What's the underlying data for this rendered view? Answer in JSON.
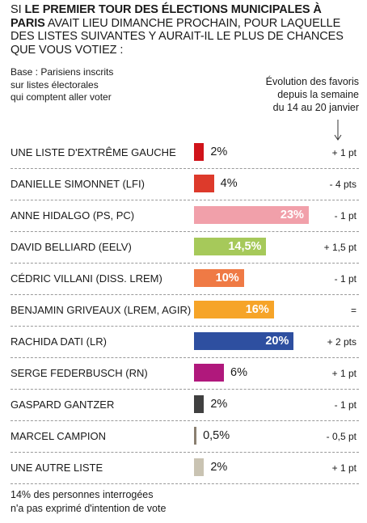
{
  "question": {
    "prefix": "Si ",
    "bold": "le premier tour des élections municipales à Paris",
    "rest": " avait lieu dimanche prochain, pour laquelle des listes suivantes y aurait-il le plus de chances que vous votiez :"
  },
  "base": {
    "lines": [
      "Base : Parisiens inscrits",
      "sur listes électorales",
      "qui comptent aller voter"
    ]
  },
  "evolution_header": {
    "lines": [
      "Évolution des favoris",
      "depuis la semaine",
      "du 14 au 20 janvier"
    ]
  },
  "chart_data": {
    "type": "bar",
    "orientation": "horizontal",
    "unit": "%",
    "categories": [
      "Une liste d'extrême gauche",
      "Danielle Simonnet (LFI)",
      "Anne Hidalgo (PS, PC)",
      "David Belliard (EELV)",
      "Cédric Villani (diss. LREM)",
      "Benjamin Griveaux (LREM, Agir)",
      "Rachida Dati (LR)",
      "Serge Federbusch (RN)",
      "Gaspard Gantzer",
      "Marcel Campion",
      "Une autre liste"
    ],
    "values": [
      2,
      4,
      23,
      14.5,
      10,
      16,
      20,
      6,
      2,
      0.5,
      2
    ],
    "value_labels": [
      "2%",
      "4%",
      "23%",
      "14,5%",
      "10%",
      "16%",
      "20%",
      "6%",
      "2%",
      "0,5%",
      "2%"
    ],
    "colors": [
      "#d0131a",
      "#dd3a2b",
      "#f1a0aa",
      "#a6c95a",
      "#ef7a45",
      "#f6a428",
      "#2e4fa0",
      "#b0187c",
      "#404040",
      "#8a7f70",
      "#c9c3b2"
    ],
    "evolution": [
      "+ 1 pt",
      "- 4 pts",
      "- 1 pt",
      "+ 1,5 pt",
      "- 1 pt",
      "=",
      "+ 2 pts",
      "+ 1 pt",
      "- 1 pt",
      "- 0,5 pt",
      "+ 1 pt"
    ]
  },
  "footnote": {
    "lines": [
      "14% des personnes interrogées",
      "n'a pas exprimé d'intention de vote"
    ]
  }
}
